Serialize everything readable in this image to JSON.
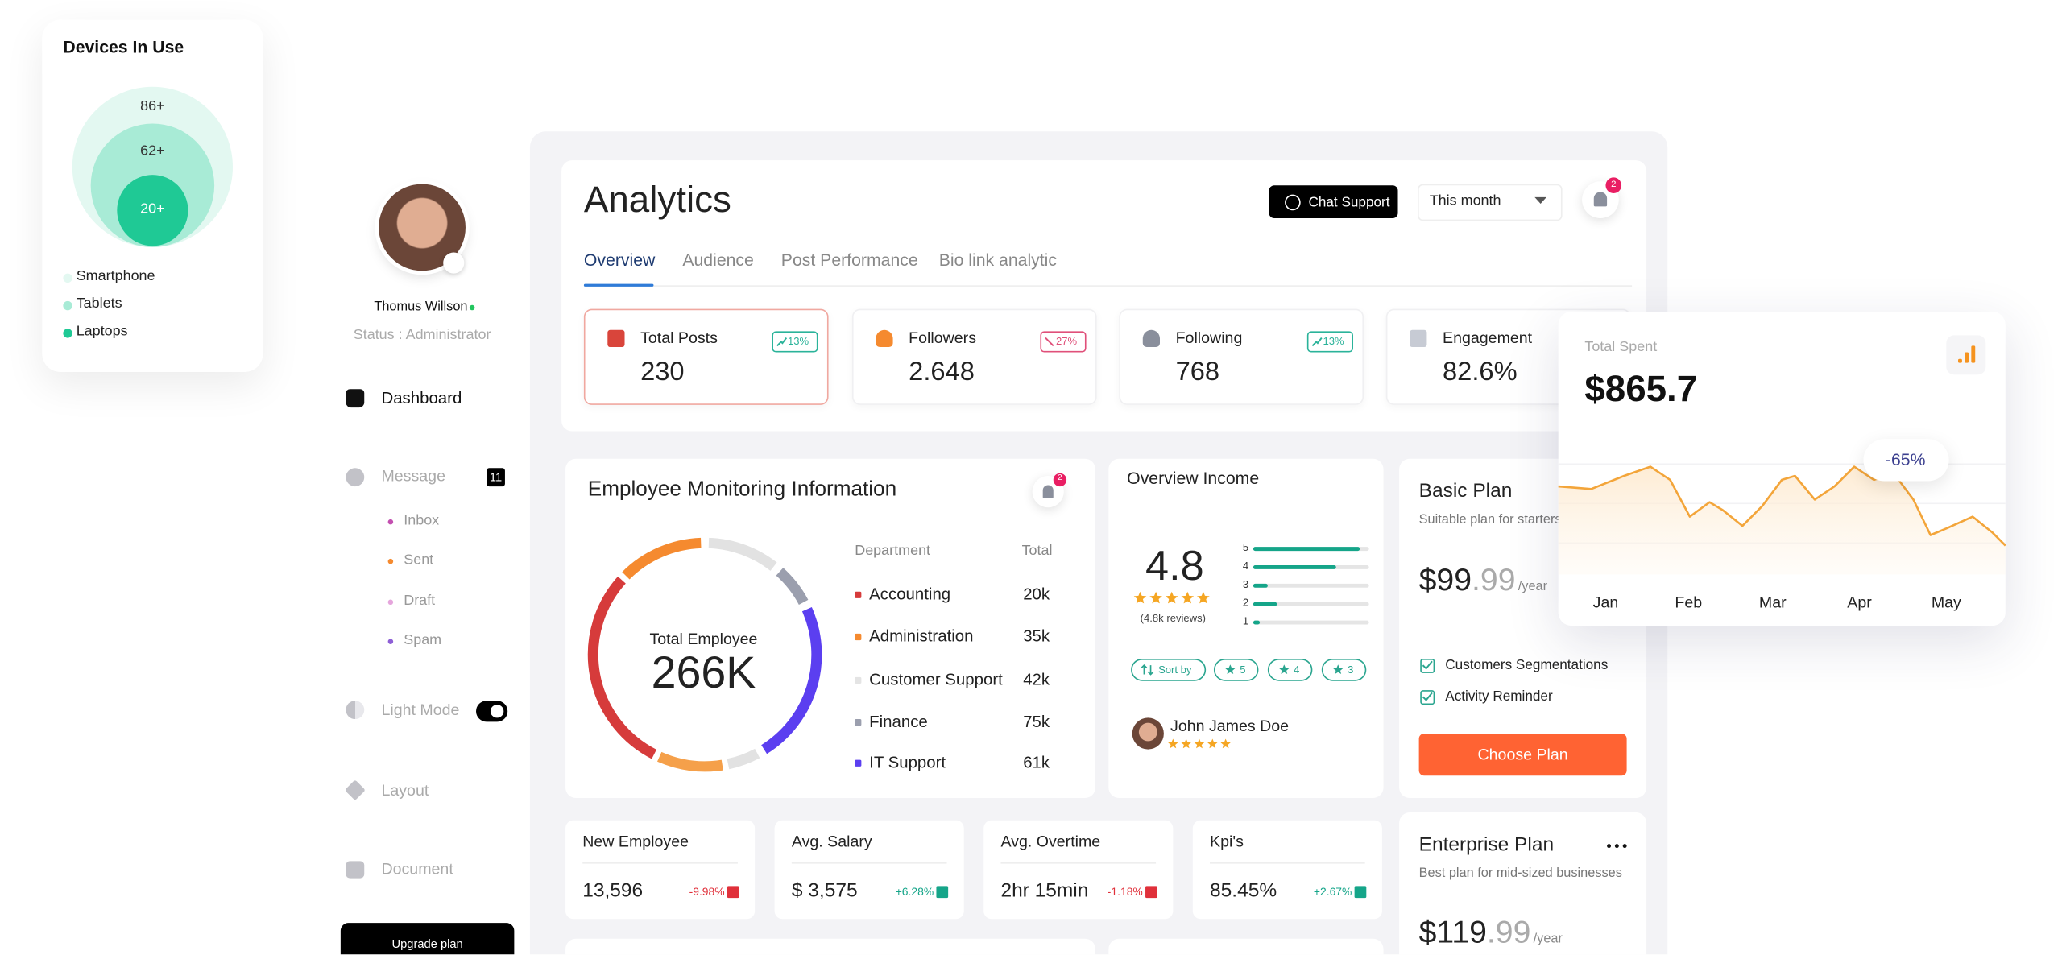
{
  "devices": {
    "title": "Devices In Use",
    "bubbles": [
      "86+",
      "62+",
      "20+"
    ],
    "legend": [
      "Smartphone",
      "Tablets",
      "Laptops"
    ]
  },
  "profile": {
    "name": "Thomus Willson",
    "status": "Status : Administrator"
  },
  "nav": {
    "dashboard": "Dashboard",
    "message": "Message",
    "message_badge": "11",
    "submenu": [
      "Inbox",
      "Sent",
      "Draft",
      "Spam"
    ],
    "light_mode": "Light Mode",
    "layout": "Layout",
    "document": "Document",
    "upgrade": "Upgrade plan"
  },
  "header": {
    "title": "Analytics",
    "chat_support": "Chat Support",
    "period": "This month",
    "notification_count": "2"
  },
  "tabs": [
    "Overview",
    "Audience",
    "Post Performance",
    "Bio link analytic"
  ],
  "stats": [
    {
      "label": "Total Posts",
      "value": "230",
      "change": "13%"
    },
    {
      "label": "Followers",
      "value": "2.648",
      "change": "27%"
    },
    {
      "label": "Following",
      "value": "768",
      "change": "13%"
    },
    {
      "label": "Engagement",
      "value": "82.6%"
    }
  ],
  "employee": {
    "title": "Employee Monitoring Information",
    "notification_count": "2",
    "center_label": "Total Employee",
    "center_value": "266K",
    "columns": [
      "Department",
      "Total"
    ],
    "rows": [
      [
        "Accounting",
        "20k"
      ],
      [
        "Administration",
        "35k"
      ],
      [
        "Customer Support",
        "42k"
      ],
      [
        "Finance",
        "75k"
      ],
      [
        "IT Support",
        "61k"
      ]
    ]
  },
  "income": {
    "title": "Overview Income",
    "rating": "4.8",
    "reviews": "(4.8k reviews)",
    "bars": [
      "5",
      "4",
      "3",
      "2",
      "1"
    ],
    "filters": [
      "Sort by",
      "5",
      "4",
      "3"
    ],
    "reviewer": "John James Doe"
  },
  "basic_plan": {
    "title": "Basic Plan",
    "subtitle": "Suitable plan for starters",
    "price": "$99",
    "cents": ".99",
    "period": "/year",
    "features": [
      "Customers Segmentations",
      "Activity Reminder"
    ],
    "button": "Choose Plan"
  },
  "enterprise_plan": {
    "title": "Enterprise Plan",
    "subtitle": "Best plan for mid-sized businesses",
    "price": "$119",
    "cents": ".99",
    "period": "/year"
  },
  "metrics": [
    {
      "label": "New Employee",
      "value": "13,596",
      "change": "-9.98%"
    },
    {
      "label": "Avg. Salary",
      "value": "$ 3,575",
      "change": "+6.28%"
    },
    {
      "label": "Avg. Overtime",
      "value": "2hr 15min",
      "change": "-1.18%"
    },
    {
      "label": "Kpi's",
      "value": "85.45%",
      "change": "+2.67%"
    }
  ],
  "spent": {
    "label": "Total Spent",
    "value": "$865.7",
    "badge": "-65%",
    "months": [
      "Jan",
      "Feb",
      "Mar",
      "Apr",
      "May"
    ]
  }
}
